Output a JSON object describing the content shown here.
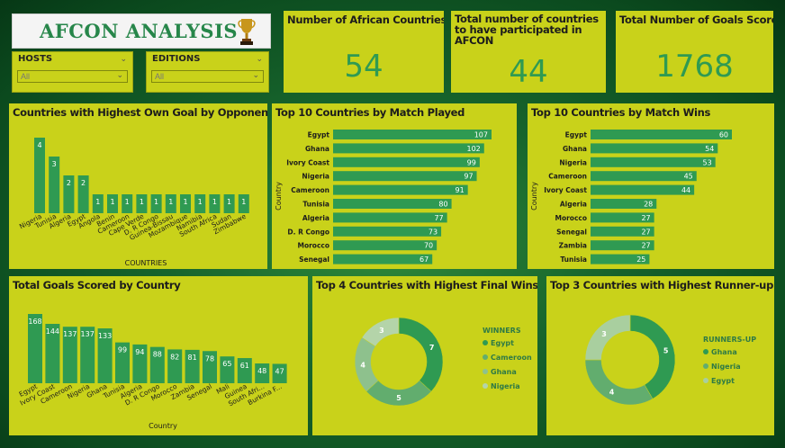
{
  "colors": {
    "panel": "#c9d21a",
    "bar": "#2f9a52",
    "dark": "#1c1c1c",
    "value_text": "#2f9a52"
  },
  "title": {
    "text": "AFCON ANALYSIS",
    "icon": "trophy-icon"
  },
  "slicers": [
    {
      "label": "HOSTS",
      "value": "All"
    },
    {
      "label": "EDITIONS",
      "value": "All"
    }
  ],
  "cards": [
    {
      "title": "Number of African Countries",
      "value": "54"
    },
    {
      "title": "Total number of countries to have participated in AFCON",
      "value": "44"
    },
    {
      "title": "Total Number of Goals Scored",
      "value": "1768"
    }
  ],
  "charts": {
    "own_goals": {
      "title": "Countries with Highest Own Goal by Opponents",
      "xlabel": "COUNTRIES"
    },
    "matches": {
      "title": "Top 10 Countries by Match Played",
      "ylabel": "Country"
    },
    "wins": {
      "title": "Top 10 Countries by Match Wins",
      "ylabel": "Country"
    },
    "goals": {
      "title": "Total Goals Scored by Country",
      "xlabel": "Country"
    },
    "finals": {
      "title": "Top 4 Countries with Highest Final Wins",
      "legend_title": "WINNERS"
    },
    "runnerup": {
      "title": "Top 3 Countries with Highest Runner-up Place",
      "legend_title": "RUNNERS-UP"
    }
  },
  "chart_data": [
    {
      "type": "bar",
      "title": "Countries with Highest Own Goal by Opponents",
      "xlabel": "COUNTRIES",
      "categories": [
        "Nigeria",
        "Tunisia",
        "Algeria",
        "Egypt",
        "Angola",
        "Benin",
        "Cameroon",
        "Cape Verde",
        "D. R Congo",
        "Guinea-Bissau",
        "Mozambique",
        "Namibia",
        "South Africa",
        "Sudan",
        "Zimbabwe"
      ],
      "values": [
        4,
        3,
        2,
        2,
        1,
        1,
        1,
        1,
        1,
        1,
        1,
        1,
        1,
        1,
        1
      ]
    },
    {
      "type": "bar",
      "orientation": "horizontal",
      "title": "Top 10 Countries by Match Played",
      "ylabel": "Country",
      "categories": [
        "Egypt",
        "Ghana",
        "Ivory Coast",
        "Nigeria",
        "Cameroon",
        "Tunisia",
        "Algeria",
        "D. R Congo",
        "Morocco",
        "Senegal"
      ],
      "values": [
        107,
        102,
        99,
        97,
        91,
        80,
        77,
        73,
        70,
        67
      ]
    },
    {
      "type": "bar",
      "orientation": "horizontal",
      "title": "Top 10 Countries by Match Wins",
      "ylabel": "Country",
      "categories": [
        "Egypt",
        "Ghana",
        "Nigeria",
        "Cameroon",
        "Ivory Coast",
        "Algeria",
        "Morocco",
        "Senegal",
        "Zambia",
        "Tunisia"
      ],
      "values": [
        60,
        54,
        53,
        45,
        44,
        28,
        27,
        27,
        27,
        25
      ]
    },
    {
      "type": "bar",
      "title": "Total Goals Scored by Country",
      "xlabel": "Country",
      "categories": [
        "Egypt",
        "Ivory Coast",
        "Cameroon",
        "Nigeria",
        "Ghana",
        "Tunisia",
        "Algeria",
        "D. R Congo",
        "Morocco",
        "Zambia",
        "Senegal",
        "Mali",
        "Guinea",
        "South Afri...",
        "Burkina F..."
      ],
      "values": [
        168,
        144,
        137,
        137,
        133,
        99,
        94,
        88,
        82,
        81,
        78,
        65,
        61,
        48,
        47
      ]
    },
    {
      "type": "pie",
      "title": "Top 4 Countries with Highest Final Wins",
      "legend_title": "WINNERS",
      "categories": [
        "Egypt",
        "Cameroon",
        "Ghana",
        "Nigeria"
      ],
      "values": [
        7,
        5,
        4,
        3
      ],
      "colors": [
        "#2f9a52",
        "#62ad6e",
        "#8ec18d",
        "#b4d4a9"
      ]
    },
    {
      "type": "pie",
      "title": "Top 3 Countries with Highest Runner-up Place",
      "legend_title": "RUNNERS-UP",
      "categories": [
        "Ghana",
        "Nigeria",
        "Egypt"
      ],
      "values": [
        5,
        4,
        3
      ],
      "colors": [
        "#2f9a52",
        "#62ad6e",
        "#a9cf9f"
      ]
    }
  ]
}
